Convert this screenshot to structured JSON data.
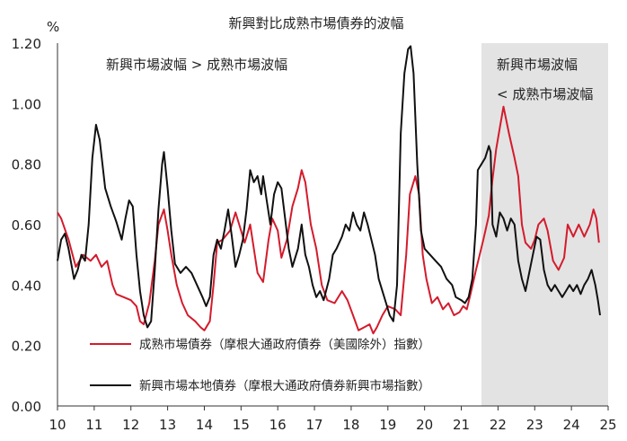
{
  "chart_data": {
    "type": "line",
    "title": "新興對比成熟市場債券的波幅",
    "ylabel": "%",
    "xlabel": "",
    "ylim": [
      0,
      1.2
    ],
    "xlim": [
      10,
      25
    ],
    "y_ticks": [
      "0.00",
      "0.20",
      "0.40",
      "0.60",
      "0.80",
      "1.00",
      "1.20"
    ],
    "x_ticks": [
      "10",
      "11",
      "12",
      "13",
      "14",
      "15",
      "16",
      "17",
      "18",
      "19",
      "20",
      "21",
      "22",
      "23",
      "24",
      "25"
    ],
    "grid": false,
    "legend_position": "bottom-left",
    "shaded_region": {
      "from": 21.55,
      "to": 25,
      "color": "#e3e3e3"
    },
    "annotations": {
      "left": "新興市場波幅 > 成熟市場波幅",
      "right_line1": "新興市場波幅",
      "right_line2": "< 成熟市場波幅"
    },
    "series": [
      {
        "name": "成熟市場債券（摩根大通政府債券（美國除外）指數）",
        "color": "#d41b2c",
        "points": [
          [
            10.0,
            0.64
          ],
          [
            10.1,
            0.62
          ],
          [
            10.3,
            0.55
          ],
          [
            10.5,
            0.46
          ],
          [
            10.7,
            0.5
          ],
          [
            10.9,
            0.48
          ],
          [
            11.05,
            0.5
          ],
          [
            11.2,
            0.46
          ],
          [
            11.35,
            0.48
          ],
          [
            11.5,
            0.4
          ],
          [
            11.6,
            0.37
          ],
          [
            11.8,
            0.36
          ],
          [
            12.0,
            0.35
          ],
          [
            12.15,
            0.33
          ],
          [
            12.25,
            0.28
          ],
          [
            12.35,
            0.27
          ],
          [
            12.5,
            0.34
          ],
          [
            12.65,
            0.48
          ],
          [
            12.75,
            0.6
          ],
          [
            12.9,
            0.65
          ],
          [
            13.0,
            0.58
          ],
          [
            13.1,
            0.5
          ],
          [
            13.25,
            0.4
          ],
          [
            13.4,
            0.34
          ],
          [
            13.55,
            0.3
          ],
          [
            13.75,
            0.28
          ],
          [
            13.9,
            0.26
          ],
          [
            14.0,
            0.25
          ],
          [
            14.15,
            0.28
          ],
          [
            14.25,
            0.4
          ],
          [
            14.35,
            0.54
          ],
          [
            14.5,
            0.55
          ],
          [
            14.7,
            0.58
          ],
          [
            14.85,
            0.64
          ],
          [
            14.95,
            0.6
          ],
          [
            15.1,
            0.54
          ],
          [
            15.25,
            0.6
          ],
          [
            15.35,
            0.52
          ],
          [
            15.45,
            0.44
          ],
          [
            15.6,
            0.41
          ],
          [
            15.75,
            0.55
          ],
          [
            15.85,
            0.62
          ],
          [
            16.0,
            0.58
          ],
          [
            16.1,
            0.49
          ],
          [
            16.25,
            0.55
          ],
          [
            16.4,
            0.66
          ],
          [
            16.55,
            0.72
          ],
          [
            16.65,
            0.78
          ],
          [
            16.75,
            0.74
          ],
          [
            16.9,
            0.6
          ],
          [
            17.05,
            0.52
          ],
          [
            17.2,
            0.4
          ],
          [
            17.35,
            0.35
          ],
          [
            17.55,
            0.34
          ],
          [
            17.75,
            0.38
          ],
          [
            17.9,
            0.35
          ],
          [
            18.05,
            0.3
          ],
          [
            18.2,
            0.25
          ],
          [
            18.35,
            0.26
          ],
          [
            18.5,
            0.27
          ],
          [
            18.6,
            0.24
          ],
          [
            18.7,
            0.26
          ],
          [
            18.85,
            0.3
          ],
          [
            19.0,
            0.33
          ],
          [
            19.2,
            0.32
          ],
          [
            19.35,
            0.3
          ],
          [
            19.5,
            0.5
          ],
          [
            19.6,
            0.7
          ],
          [
            19.75,
            0.76
          ],
          [
            19.85,
            0.7
          ],
          [
            19.95,
            0.5
          ],
          [
            20.05,
            0.42
          ],
          [
            20.2,
            0.34
          ],
          [
            20.35,
            0.36
          ],
          [
            20.5,
            0.32
          ],
          [
            20.65,
            0.34
          ],
          [
            20.8,
            0.3
          ],
          [
            20.95,
            0.31
          ],
          [
            21.05,
            0.33
          ],
          [
            21.15,
            0.32
          ],
          [
            21.25,
            0.37
          ],
          [
            21.4,
            0.45
          ],
          [
            21.5,
            0.5
          ],
          [
            21.6,
            0.55
          ],
          [
            21.75,
            0.63
          ],
          [
            21.85,
            0.75
          ],
          [
            21.95,
            0.85
          ],
          [
            22.05,
            0.92
          ],
          [
            22.15,
            0.99
          ],
          [
            22.3,
            0.9
          ],
          [
            22.45,
            0.82
          ],
          [
            22.55,
            0.76
          ],
          [
            22.65,
            0.6
          ],
          [
            22.75,
            0.54
          ],
          [
            22.9,
            0.52
          ],
          [
            23.0,
            0.55
          ],
          [
            23.1,
            0.6
          ],
          [
            23.25,
            0.62
          ],
          [
            23.35,
            0.58
          ],
          [
            23.5,
            0.48
          ],
          [
            23.65,
            0.45
          ],
          [
            23.8,
            0.49
          ],
          [
            23.9,
            0.6
          ],
          [
            24.05,
            0.56
          ],
          [
            24.2,
            0.6
          ],
          [
            24.35,
            0.56
          ],
          [
            24.5,
            0.6
          ],
          [
            24.6,
            0.65
          ],
          [
            24.68,
            0.62
          ],
          [
            24.75,
            0.54
          ]
        ]
      },
      {
        "name": "新興市場本地債券（摩根大通政府債券新興市場指數）",
        "color": "#111111",
        "points": [
          [
            10.0,
            0.48
          ],
          [
            10.1,
            0.55
          ],
          [
            10.2,
            0.57
          ],
          [
            10.3,
            0.52
          ],
          [
            10.45,
            0.42
          ],
          [
            10.55,
            0.45
          ],
          [
            10.65,
            0.5
          ],
          [
            10.75,
            0.48
          ],
          [
            10.85,
            0.6
          ],
          [
            10.95,
            0.82
          ],
          [
            11.05,
            0.93
          ],
          [
            11.15,
            0.88
          ],
          [
            11.3,
            0.72
          ],
          [
            11.45,
            0.66
          ],
          [
            11.6,
            0.61
          ],
          [
            11.75,
            0.55
          ],
          [
            11.85,
            0.62
          ],
          [
            11.95,
            0.68
          ],
          [
            12.05,
            0.66
          ],
          [
            12.15,
            0.5
          ],
          [
            12.25,
            0.38
          ],
          [
            12.35,
            0.3
          ],
          [
            12.45,
            0.26
          ],
          [
            12.55,
            0.28
          ],
          [
            12.65,
            0.45
          ],
          [
            12.75,
            0.65
          ],
          [
            12.85,
            0.8
          ],
          [
            12.9,
            0.84
          ],
          [
            13.0,
            0.72
          ],
          [
            13.1,
            0.58
          ],
          [
            13.2,
            0.47
          ],
          [
            13.35,
            0.44
          ],
          [
            13.5,
            0.46
          ],
          [
            13.65,
            0.44
          ],
          [
            13.8,
            0.4
          ],
          [
            13.95,
            0.36
          ],
          [
            14.05,
            0.33
          ],
          [
            14.15,
            0.36
          ],
          [
            14.25,
            0.5
          ],
          [
            14.35,
            0.55
          ],
          [
            14.45,
            0.52
          ],
          [
            14.55,
            0.58
          ],
          [
            14.65,
            0.65
          ],
          [
            14.75,
            0.56
          ],
          [
            14.85,
            0.46
          ],
          [
            14.95,
            0.5
          ],
          [
            15.05,
            0.55
          ],
          [
            15.15,
            0.65
          ],
          [
            15.25,
            0.78
          ],
          [
            15.35,
            0.74
          ],
          [
            15.45,
            0.76
          ],
          [
            15.55,
            0.7
          ],
          [
            15.6,
            0.76
          ],
          [
            15.7,
            0.68
          ],
          [
            15.8,
            0.6
          ],
          [
            15.9,
            0.7
          ],
          [
            16.0,
            0.74
          ],
          [
            16.1,
            0.72
          ],
          [
            16.2,
            0.62
          ],
          [
            16.3,
            0.52
          ],
          [
            16.4,
            0.46
          ],
          [
            16.55,
            0.52
          ],
          [
            16.65,
            0.6
          ],
          [
            16.75,
            0.5
          ],
          [
            16.85,
            0.46
          ],
          [
            16.95,
            0.4
          ],
          [
            17.05,
            0.36
          ],
          [
            17.15,
            0.38
          ],
          [
            17.25,
            0.35
          ],
          [
            17.4,
            0.42
          ],
          [
            17.5,
            0.5
          ],
          [
            17.6,
            0.52
          ],
          [
            17.75,
            0.56
          ],
          [
            17.85,
            0.6
          ],
          [
            17.95,
            0.58
          ],
          [
            18.05,
            0.64
          ],
          [
            18.15,
            0.6
          ],
          [
            18.25,
            0.58
          ],
          [
            18.35,
            0.64
          ],
          [
            18.45,
            0.6
          ],
          [
            18.55,
            0.55
          ],
          [
            18.65,
            0.5
          ],
          [
            18.75,
            0.42
          ],
          [
            18.85,
            0.38
          ],
          [
            18.95,
            0.34
          ],
          [
            19.05,
            0.3
          ],
          [
            19.15,
            0.28
          ],
          [
            19.25,
            0.4
          ],
          [
            19.35,
            0.9
          ],
          [
            19.45,
            1.1
          ],
          [
            19.55,
            1.18
          ],
          [
            19.62,
            1.19
          ],
          [
            19.7,
            1.1
          ],
          [
            19.8,
            0.8
          ],
          [
            19.9,
            0.58
          ],
          [
            20.0,
            0.52
          ],
          [
            20.15,
            0.5
          ],
          [
            20.3,
            0.48
          ],
          [
            20.45,
            0.46
          ],
          [
            20.6,
            0.42
          ],
          [
            20.75,
            0.4
          ],
          [
            20.85,
            0.36
          ],
          [
            21.0,
            0.35
          ],
          [
            21.1,
            0.34
          ],
          [
            21.2,
            0.36
          ],
          [
            21.3,
            0.42
          ],
          [
            21.4,
            0.6
          ],
          [
            21.45,
            0.78
          ],
          [
            21.55,
            0.8
          ],
          [
            21.65,
            0.82
          ],
          [
            21.75,
            0.86
          ],
          [
            21.8,
            0.84
          ],
          [
            21.85,
            0.6
          ],
          [
            21.95,
            0.56
          ],
          [
            22.05,
            0.64
          ],
          [
            22.15,
            0.62
          ],
          [
            22.25,
            0.58
          ],
          [
            22.35,
            0.62
          ],
          [
            22.45,
            0.6
          ],
          [
            22.55,
            0.48
          ],
          [
            22.65,
            0.42
          ],
          [
            22.75,
            0.38
          ],
          [
            22.85,
            0.44
          ],
          [
            22.95,
            0.5
          ],
          [
            23.05,
            0.56
          ],
          [
            23.15,
            0.55
          ],
          [
            23.25,
            0.45
          ],
          [
            23.35,
            0.4
          ],
          [
            23.45,
            0.38
          ],
          [
            23.55,
            0.4
          ],
          [
            23.65,
            0.38
          ],
          [
            23.75,
            0.36
          ],
          [
            23.85,
            0.38
          ],
          [
            23.95,
            0.4
          ],
          [
            24.05,
            0.38
          ],
          [
            24.15,
            0.4
          ],
          [
            24.25,
            0.37
          ],
          [
            24.35,
            0.4
          ],
          [
            24.45,
            0.42
          ],
          [
            24.55,
            0.45
          ],
          [
            24.65,
            0.4
          ],
          [
            24.72,
            0.35
          ],
          [
            24.78,
            0.3
          ]
        ]
      }
    ]
  }
}
